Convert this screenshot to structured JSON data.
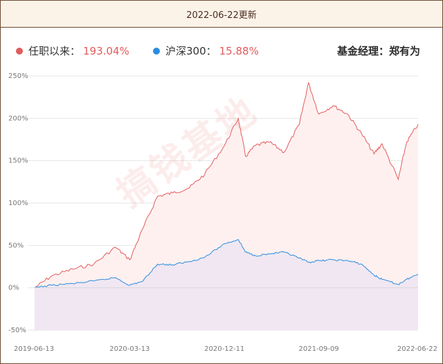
{
  "header": {
    "update_date": "2022-06-22更新"
  },
  "legend": {
    "series_a": {
      "label": "任职以来：",
      "value": "193.04%"
    },
    "series_b": {
      "label": "沪深300：",
      "value": "15.88%"
    },
    "manager": "基金经理：郑有为"
  },
  "watermark": "搞钱基地",
  "colors": {
    "series_a": "#e25b5b",
    "series_b": "#2a8de0",
    "fill_a": "#fff0f0",
    "fill_b": "#eee6f2"
  },
  "chart_data": {
    "type": "area",
    "title": "",
    "xlabel": "",
    "ylabel": "",
    "ylim": [
      -50,
      250
    ],
    "yticks": [
      -50,
      0,
      50,
      100,
      150,
      200,
      250
    ],
    "ytick_labels": [
      "-50%",
      "0%",
      "50%",
      "100%",
      "150%",
      "200%",
      "250%"
    ],
    "xticks": [
      "2019-06-13",
      "2020-03-13",
      "2020-12-11",
      "2021-09-09",
      "2022-06-22"
    ],
    "grid": true,
    "series": [
      {
        "name": "任职以来",
        "x": [
          "2019-06-13",
          "2019-08-01",
          "2019-10-01",
          "2019-12-01",
          "2020-02-01",
          "2020-03-13",
          "2020-04-20",
          "2020-06-01",
          "2020-07-15",
          "2020-09-01",
          "2020-10-15",
          "2020-12-11",
          "2021-01-20",
          "2021-02-10",
          "2021-03-10",
          "2021-04-20",
          "2021-06-01",
          "2021-07-15",
          "2021-08-10",
          "2021-09-09",
          "2021-10-20",
          "2021-12-01",
          "2022-01-10",
          "2022-02-15",
          "2022-03-10",
          "2022-04-26",
          "2022-05-20",
          "2022-06-22"
        ],
        "values": [
          0,
          14,
          22,
          28,
          48,
          33,
          70,
          108,
          112,
          118,
          134,
          168,
          200,
          155,
          168,
          172,
          160,
          193,
          242,
          205,
          215,
          205,
          182,
          158,
          170,
          128,
          172,
          193
        ]
      },
      {
        "name": "沪深300",
        "x": [
          "2019-06-13",
          "2019-08-01",
          "2019-10-01",
          "2019-12-01",
          "2020-02-01",
          "2020-03-13",
          "2020-04-20",
          "2020-06-01",
          "2020-07-15",
          "2020-09-01",
          "2020-10-15",
          "2020-12-11",
          "2021-01-20",
          "2021-02-10",
          "2021-03-10",
          "2021-04-20",
          "2021-06-01",
          "2021-07-15",
          "2021-08-10",
          "2021-09-09",
          "2021-10-20",
          "2021-12-01",
          "2022-01-10",
          "2022-02-15",
          "2022-03-10",
          "2022-04-26",
          "2022-05-20",
          "2022-06-22"
        ],
        "values": [
          0,
          3,
          5,
          8,
          12,
          3,
          8,
          28,
          27,
          31,
          36,
          52,
          57,
          42,
          38,
          40,
          42,
          35,
          30,
          32,
          33,
          32,
          28,
          15,
          10,
          4,
          10,
          16
        ]
      }
    ]
  }
}
